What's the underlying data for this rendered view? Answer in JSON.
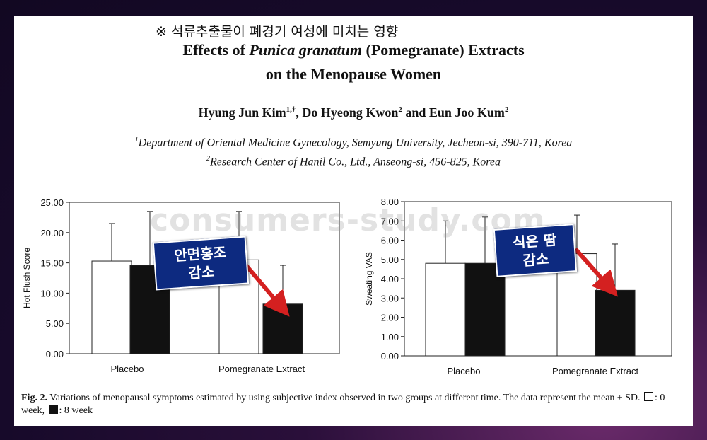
{
  "header": {
    "korean_title": "※ 석류추출물이 폐경기 여성에 미치는 영향",
    "title_pre": "Effects of ",
    "title_italic": "Punica granatum",
    "title_post": " (Pomegranate) Extracts",
    "title_line2": "on the Menopause Women",
    "author1": "Hyung Jun Kim",
    "author1_sup": "1,†",
    "author2": ", Do Hyeong Kwon",
    "author2_sup": "2",
    "author3": " and Eun Joo Kum",
    "author3_sup": "2",
    "affil1_sup": "1",
    "affil1": "Department of Oriental Medicine Gynecology, Semyung University, Jecheon-si, 390-711, Korea",
    "affil2_sup": "2",
    "affil2": "Research Center of Hanil Co., Ltd., Anseong-si, 456-825, Korea"
  },
  "watermark": "consumers-study.com",
  "callouts": [
    {
      "line1": "안면홍조",
      "line2": "감소"
    },
    {
      "line1": "식은 땀",
      "line2": "감소"
    }
  ],
  "caption": {
    "fig": "Fig. 2.",
    "text": " Variations of menopausal symptoms estimated by using subjective index observed in two groups at different time. The data represent the mean ± SD.",
    "legend_open": ": 0 week,",
    "legend_fill": ": 8 week"
  },
  "colors": {
    "bar_0week": "#ffffff",
    "bar_8week": "#111111",
    "arrow": "#d42020",
    "callout_bg": "#0d2a80"
  },
  "chart_data": [
    {
      "type": "bar",
      "categories": [
        "Placebo",
        "Pomegranate Extract"
      ],
      "series": [
        {
          "name": "0 week",
          "values": [
            15.3,
            15.5
          ],
          "error": [
            6.2,
            8.0
          ]
        },
        {
          "name": "8 week",
          "values": [
            14.6,
            8.2
          ],
          "error": [
            8.9,
            6.4
          ]
        }
      ],
      "title": "",
      "xlabel": "",
      "ylabel": "Hot Flush Score",
      "ylim": [
        0,
        25
      ],
      "yticks": [
        "0.00",
        "5.00",
        "10.00",
        "15.00",
        "20.00",
        "25.00"
      ],
      "grid": false
    },
    {
      "type": "bar",
      "categories": [
        "Placebo",
        "Pomegranate Extract"
      ],
      "series": [
        {
          "name": "0 week",
          "values": [
            4.8,
            5.3
          ],
          "error": [
            2.2,
            2.0
          ]
        },
        {
          "name": "8 week",
          "values": [
            4.8,
            3.4
          ],
          "error": [
            2.4,
            2.4
          ]
        }
      ],
      "title": "",
      "xlabel": "",
      "ylabel": "Sweating VAS",
      "ylim": [
        0,
        8
      ],
      "yticks": [
        "0.00",
        "1.00",
        "2.00",
        "3.00",
        "4.00",
        "5.00",
        "6.00",
        "7.00",
        "8.00"
      ],
      "grid": false
    }
  ]
}
